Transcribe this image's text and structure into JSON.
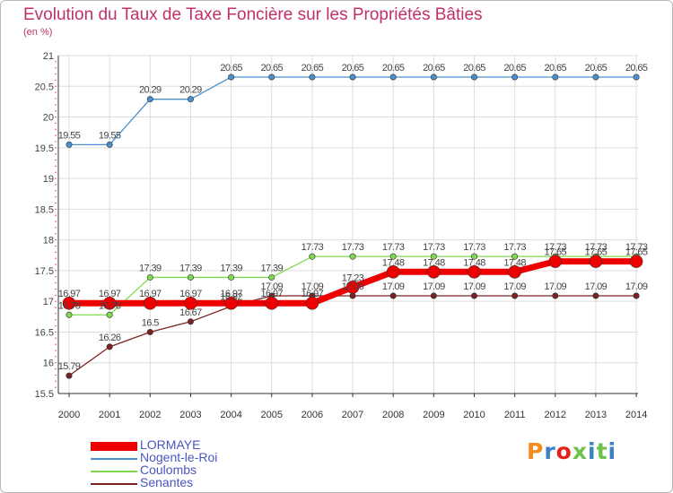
{
  "chart_data": {
    "type": "line",
    "title": "Evolution du Taux de Taxe Foncière sur les Propriétés Bâties",
    "subtitle": "(en %)",
    "x": [
      "2000",
      "2001",
      "2002",
      "2003",
      "2004",
      "2005",
      "2006",
      "2007",
      "2008",
      "2009",
      "2010",
      "2011",
      "2012",
      "2013",
      "2014"
    ],
    "ylim": [
      15.5,
      21
    ],
    "yticks": [
      "15.5",
      "16",
      "16.5",
      "17",
      "17.5",
      "18",
      "18.5",
      "19",
      "19.5",
      "20",
      "20.5",
      "21"
    ],
    "grid": true,
    "legend_position": "bottom-left",
    "series": [
      {
        "name": "LORMAYE",
        "color": "#ee0000",
        "values": [
          16.97,
          16.97,
          16.97,
          16.97,
          16.97,
          16.97,
          16.97,
          17.23,
          17.48,
          17.48,
          17.48,
          17.48,
          17.65,
          17.65,
          17.65
        ]
      },
      {
        "name": "Nogent-le-Roi",
        "color": "#4a8fd0",
        "values": [
          19.55,
          19.55,
          20.29,
          20.29,
          20.65,
          20.65,
          20.65,
          20.65,
          20.65,
          20.65,
          20.65,
          20.65,
          20.65,
          20.65,
          20.65
        ]
      },
      {
        "name": "Coulombs",
        "color": "#80d850",
        "values": [
          16.78,
          16.78,
          17.39,
          17.39,
          17.39,
          17.39,
          17.73,
          17.73,
          17.73,
          17.73,
          17.73,
          17.73,
          17.73,
          17.73,
          17.73
        ]
      },
      {
        "name": "Senantes",
        "color": "#7a2222",
        "values": [
          15.79,
          16.26,
          16.5,
          16.67,
          16.92,
          17.09,
          17.09,
          17.09,
          17.09,
          17.09,
          17.09,
          17.09,
          17.09,
          17.09,
          17.09
        ]
      }
    ]
  },
  "logo": {
    "text": "Proxiti",
    "colors": [
      "#f28c1e",
      "#3d80c6",
      "#e2231a",
      "#6cc24a",
      "#3d80c6",
      "#6cc24a",
      "#3d80c6"
    ]
  }
}
